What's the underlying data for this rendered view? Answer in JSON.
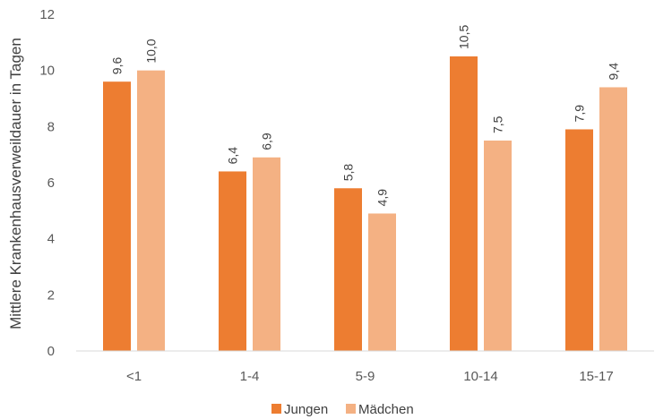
{
  "chart_data": {
    "type": "bar",
    "categories": [
      "<1",
      "1-4",
      "5-9",
      "10-14",
      "15-17"
    ],
    "series": [
      {
        "name": "Jungen",
        "values": [
          9.6,
          6.4,
          5.8,
          10.5,
          7.9
        ],
        "labels": [
          "9,6",
          "6,4",
          "5,8",
          "10,5",
          "7,9"
        ],
        "color": "#ED7D31"
      },
      {
        "name": "Mädchen",
        "values": [
          10.0,
          6.9,
          4.9,
          7.5,
          9.4
        ],
        "labels": [
          "10,0",
          "6,9",
          "4,9",
          "7,5",
          "9,4"
        ],
        "color": "#F4B183"
      }
    ],
    "ylabel": "Mittlere Krankenhausverweildauer in Tagen",
    "ylim": [
      0,
      12
    ],
    "yticks": [
      0,
      2,
      4,
      6,
      8,
      10,
      12
    ],
    "ytick_labels": [
      "0",
      "2",
      "4",
      "6",
      "8",
      "10",
      "12"
    ],
    "grid": false,
    "legend_position": "bottom"
  }
}
